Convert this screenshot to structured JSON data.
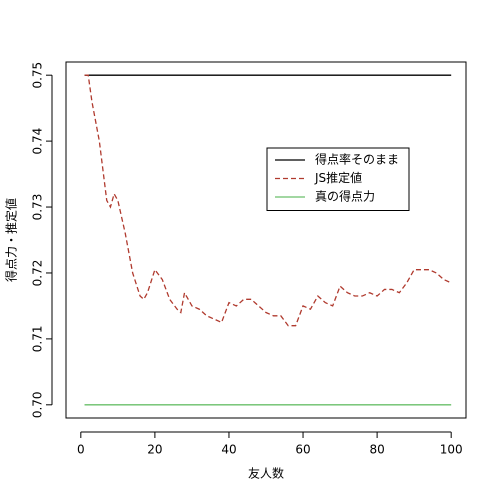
{
  "chart_data": {
    "type": "line",
    "xlabel": "友人数",
    "ylabel": "得点力・推定値",
    "x": [
      1,
      2,
      3,
      5,
      7,
      8,
      9,
      10,
      12,
      14,
      16,
      17,
      18,
      20,
      22,
      24,
      26,
      27,
      28,
      30,
      32,
      34,
      36,
      38,
      40,
      42,
      44,
      46,
      48,
      50,
      52,
      54,
      56,
      58,
      60,
      62,
      64,
      66,
      68,
      70,
      72,
      74,
      76,
      78,
      80,
      82,
      84,
      86,
      88,
      90,
      92,
      94,
      96,
      98,
      100
    ],
    "series": [
      {
        "name": "得点率そのまま",
        "color": "#000000",
        "linestyle": "solid",
        "values": [
          0.75,
          0.75,
          0.75,
          0.75,
          0.75,
          0.75,
          0.75,
          0.75,
          0.75,
          0.75,
          0.75,
          0.75,
          0.75,
          0.75,
          0.75,
          0.75,
          0.75,
          0.75,
          0.75,
          0.75,
          0.75,
          0.75,
          0.75,
          0.75,
          0.75,
          0.75,
          0.75,
          0.75,
          0.75,
          0.75,
          0.75,
          0.75,
          0.75,
          0.75,
          0.75,
          0.75,
          0.75,
          0.75,
          0.75,
          0.75,
          0.75,
          0.75,
          0.75,
          0.75,
          0.75,
          0.75,
          0.75,
          0.75,
          0.75,
          0.75,
          0.75,
          0.75,
          0.75,
          0.75,
          0.75
        ]
      },
      {
        "name": "JS推定値",
        "color": "#b03a2e",
        "linestyle": "dashed",
        "values": [
          0.75,
          0.75,
          0.746,
          0.74,
          0.731,
          0.73,
          0.732,
          0.731,
          0.726,
          0.72,
          0.7165,
          0.716,
          0.717,
          0.7205,
          0.719,
          0.716,
          0.7145,
          0.714,
          0.717,
          0.715,
          0.7145,
          0.7135,
          0.713,
          0.7125,
          0.7155,
          0.715,
          0.716,
          0.716,
          0.715,
          0.714,
          0.7135,
          0.7135,
          0.712,
          0.712,
          0.715,
          0.7145,
          0.7165,
          0.7155,
          0.715,
          0.718,
          0.717,
          0.7165,
          0.7165,
          0.717,
          0.7165,
          0.7175,
          0.7175,
          0.717,
          0.7185,
          0.7205,
          0.7205,
          0.7205,
          0.72,
          0.719,
          0.7185
        ]
      },
      {
        "name": "真の得点力",
        "color": "#6abf6a",
        "linestyle": "solid",
        "values": [
          0.7,
          0.7,
          0.7,
          0.7,
          0.7,
          0.7,
          0.7,
          0.7,
          0.7,
          0.7,
          0.7,
          0.7,
          0.7,
          0.7,
          0.7,
          0.7,
          0.7,
          0.7,
          0.7,
          0.7,
          0.7,
          0.7,
          0.7,
          0.7,
          0.7,
          0.7,
          0.7,
          0.7,
          0.7,
          0.7,
          0.7,
          0.7,
          0.7,
          0.7,
          0.7,
          0.7,
          0.7,
          0.7,
          0.7,
          0.7,
          0.7,
          0.7,
          0.7,
          0.7,
          0.7,
          0.7,
          0.7,
          0.7,
          0.7,
          0.7,
          0.7,
          0.7,
          0.7,
          0.7,
          0.7
        ]
      }
    ],
    "xlim": [
      -4,
      104
    ],
    "xticks": [
      0,
      20,
      40,
      60,
      80,
      100
    ],
    "ylim": [
      0.698,
      0.752
    ],
    "yticks": [
      {
        "value": 0.7,
        "label": "0.70"
      },
      0.71,
      0.72,
      0.73,
      0.74,
      {
        "value": 0.75,
        "label": "0.75"
      }
    ],
    "legend": "right"
  }
}
